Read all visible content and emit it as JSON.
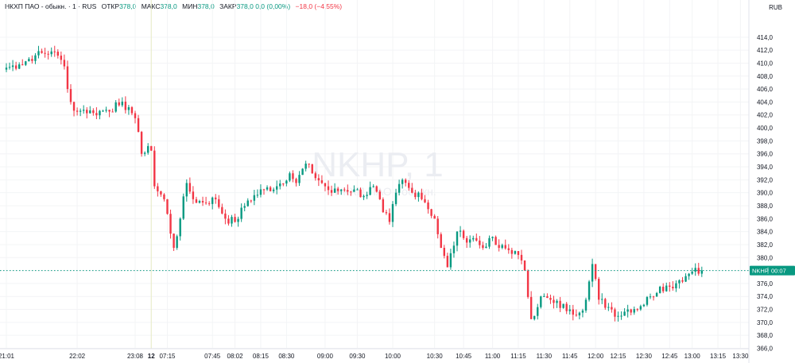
{
  "legend": {
    "symbol": "НКХП ПАО - обыкн. · 1 · RUS",
    "open_label": "ОТКР",
    "open": "378,0",
    "high_label": "МАКС",
    "high": "378,0",
    "low_label": "МИН",
    "low": "378,0",
    "close_label": "ЗАКР",
    "close": "378,0",
    "change": "0,0 (0,00%)",
    "day_change": "−18,0 (−4,55%)"
  },
  "watermark": {
    "ticker": "NKHP, 1",
    "name": "НКХП ПАО - обыкн."
  },
  "currency": "RUB",
  "price_tag": {
    "ticker": "NKHP",
    "countdown": "00:07"
  },
  "colors": {
    "up": "#089981",
    "down": "#f23645",
    "grid": "#f3f4f6",
    "last_line": "#089981"
  },
  "chart_data": {
    "type": "candlestick",
    "title": "",
    "ylim": [
      366,
      416
    ],
    "yticks": [
      414,
      412,
      410,
      408,
      406,
      404,
      402,
      400,
      398,
      396,
      394,
      392,
      390,
      388,
      386,
      384,
      382,
      380,
      378,
      376,
      374,
      372,
      370,
      368,
      366
    ],
    "ytick_labels": [
      "414,0",
      "412,0",
      "410,0",
      "408,0",
      "406,0",
      "404,0",
      "402,0",
      "400,0",
      "398,0",
      "396,0",
      "394,0",
      "392,0",
      "390,0",
      "388,0",
      "386,0",
      "384,0",
      "382,0",
      "380,0",
      "378,0",
      "376,0",
      "374,0",
      "372,0",
      "370,0",
      "368,0",
      "366,0"
    ],
    "xtick_labels": [
      "21:01",
      "22:02",
      "23:08",
      "12",
      "07:15",
      "07:45",
      "08:02",
      "08:15",
      "08:30",
      "09:00",
      "09:30",
      "10:00",
      "10:30",
      "10:45",
      "11:00",
      "11:15",
      "11:30",
      "11:45",
      "12:00",
      "12:15",
      "12:30",
      "12:45",
      "13:00",
      "13:15",
      "13:30"
    ],
    "xticks": [
      0,
      22,
      40,
      45,
      50,
      64,
      71,
      79,
      87,
      99,
      109,
      120,
      133,
      142,
      151,
      159,
      167,
      175,
      183,
      190,
      198,
      206,
      213,
      221,
      228
    ],
    "session_breaks": [
      45
    ],
    "last_price": 378.0,
    "anchors": [
      [
        0,
        409.3
      ],
      [
        4,
        409.8
      ],
      [
        9,
        411.2
      ],
      [
        14,
        411.8
      ],
      [
        17,
        410.5
      ],
      [
        18,
        409.5
      ],
      [
        19,
        406.0
      ],
      [
        20,
        404.0
      ],
      [
        22,
        402.5
      ],
      [
        24,
        402.8
      ],
      [
        27,
        402.3
      ],
      [
        31,
        402.8
      ],
      [
        35,
        403.5
      ],
      [
        38,
        403.2
      ],
      [
        40,
        401.5
      ],
      [
        42,
        396.0
      ],
      [
        44,
        397.2
      ],
      [
        45,
        396.5
      ],
      [
        46,
        391.0
      ],
      [
        49,
        389.0
      ],
      [
        52,
        381.5
      ],
      [
        54,
        386.0
      ],
      [
        56,
        391.5
      ],
      [
        58,
        389.0
      ],
      [
        61,
        388.5
      ],
      [
        65,
        389.0
      ],
      [
        68,
        386.0
      ],
      [
        71,
        385.5
      ],
      [
        75,
        388.8
      ],
      [
        80,
        390.5
      ],
      [
        84,
        391.0
      ],
      [
        88,
        393.0
      ],
      [
        90,
        391.5
      ],
      [
        93,
        394.5
      ],
      [
        95,
        393.0
      ],
      [
        98,
        391.5
      ],
      [
        101,
        390.0
      ],
      [
        104,
        390.5
      ],
      [
        108,
        390.5
      ],
      [
        111,
        389.5
      ],
      [
        114,
        391.0
      ],
      [
        117,
        387.0
      ],
      [
        119,
        385.5
      ],
      [
        121,
        390.0
      ],
      [
        123,
        392.0
      ],
      [
        126,
        390.0
      ],
      [
        128,
        390.0
      ],
      [
        130,
        388.5
      ],
      [
        133,
        386.0
      ],
      [
        135,
        381.5
      ],
      [
        137,
        378.5
      ],
      [
        140,
        384.0
      ],
      [
        142,
        383.0
      ],
      [
        145,
        383.0
      ],
      [
        148,
        381.5
      ],
      [
        150,
        383.0
      ],
      [
        153,
        381.5
      ],
      [
        158,
        381.0
      ],
      [
        161,
        378.0
      ],
      [
        163,
        370.5
      ],
      [
        166,
        374.0
      ],
      [
        170,
        373.0
      ],
      [
        175,
        372.0
      ],
      [
        178,
        371.5
      ],
      [
        180,
        373.5
      ],
      [
        182,
        379.0
      ],
      [
        184,
        373.5
      ],
      [
        188,
        372.0
      ],
      [
        190,
        371.0
      ],
      [
        193,
        372.0
      ],
      [
        197,
        372.5
      ],
      [
        200,
        374.0
      ],
      [
        203,
        375.5
      ],
      [
        206,
        375.5
      ],
      [
        209,
        376.5
      ],
      [
        212,
        377.5
      ],
      [
        214,
        378.4
      ],
      [
        216,
        378.0
      ]
    ],
    "xlabel": "",
    "ylabel": ""
  }
}
